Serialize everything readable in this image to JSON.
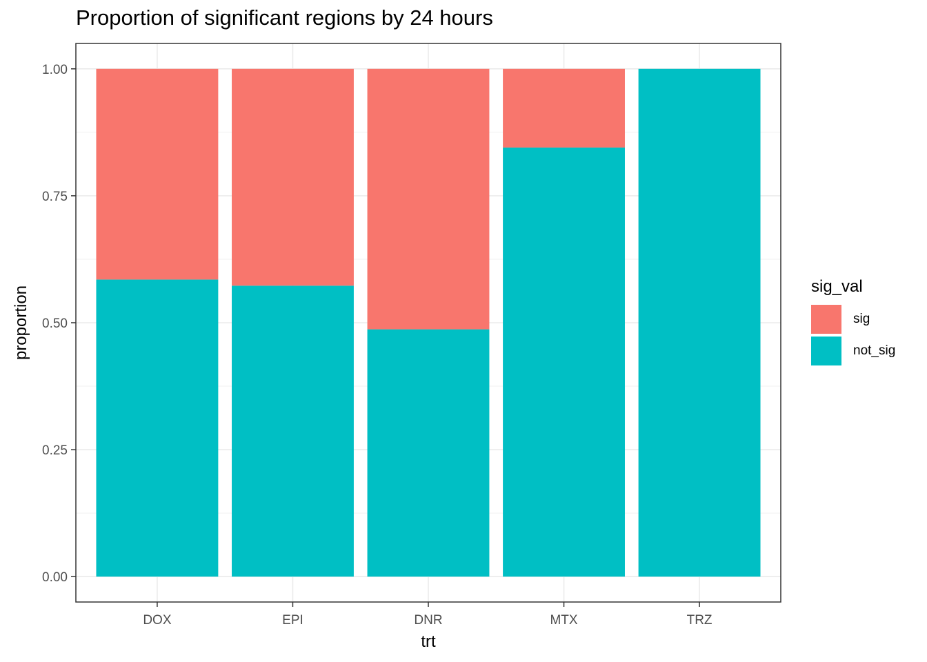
{
  "chart_data": {
    "type": "bar",
    "stacked": true,
    "title": "Proportion of significant regions by 24 hours",
    "xlabel": "trt",
    "ylabel": "proportion",
    "categories": [
      "DOX",
      "EPI",
      "DNR",
      "MTX",
      "TRZ"
    ],
    "ylim": [
      -0.05,
      1.05
    ],
    "yticks": [
      "0.00",
      "0.25",
      "0.50",
      "0.75",
      "1.00"
    ],
    "grid": true,
    "legend_title": "sig_val",
    "legend_position": "right",
    "series": [
      {
        "name": "sig",
        "color": "#F8766D",
        "values": [
          0.415,
          0.427,
          0.513,
          0.155,
          0.0
        ]
      },
      {
        "name": "not_sig",
        "color": "#00BFC4",
        "values": [
          0.585,
          0.573,
          0.487,
          0.845,
          1.0
        ]
      }
    ]
  }
}
